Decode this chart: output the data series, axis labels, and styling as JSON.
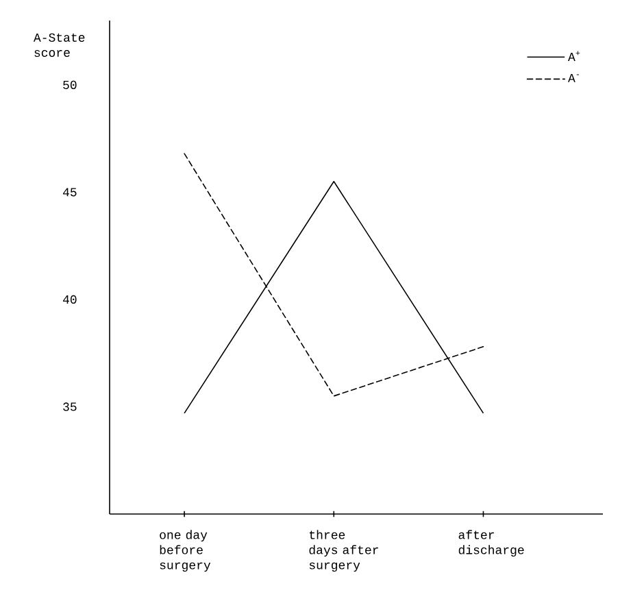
{
  "chart_data": {
    "type": "line",
    "ylabel": "A-State score",
    "categories": [
      "one day before surgery",
      "three days after surgery",
      "after discharge"
    ],
    "series": [
      {
        "name": "A$^{+}$",
        "color": "#000000",
        "line_style": "solid",
        "values": [
          34.7,
          45.5,
          34.7
        ]
      },
      {
        "name": "A$^{-}$",
        "color": "#000000",
        "line_style": "dashed",
        "values": [
          46.8,
          35.5,
          37.8
        ]
      }
    ],
    "ylim": [
      30,
      53
    ],
    "yticks": [
      35,
      40,
      45,
      50
    ],
    "legend": "top right",
    "grid": false,
    "marker": "none"
  }
}
